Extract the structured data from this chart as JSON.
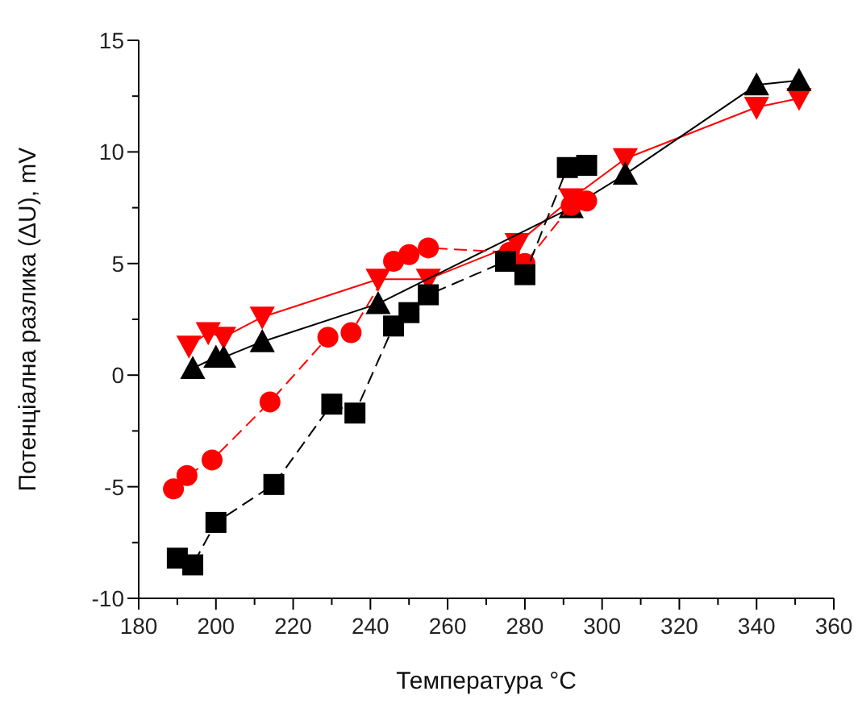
{
  "chart_data": {
    "type": "line",
    "xlabel": "Температура °C",
    "ylabel": "Потенціална разлика (ΔU), mV",
    "xlim": [
      180,
      360
    ],
    "ylim": [
      -10,
      15
    ],
    "xticks": [
      180,
      {
        "value": 190,
        "label": null
      },
      200,
      {
        "value": 210,
        "label": null
      },
      220,
      {
        "value": 230,
        "label": null
      },
      240,
      {
        "value": 250,
        "label": null
      },
      260,
      {
        "value": 270,
        "label": null
      },
      280,
      {
        "value": 290,
        "label": null
      },
      300,
      {
        "value": 310,
        "label": null
      },
      320,
      {
        "value": 330,
        "label": null
      },
      340,
      {
        "value": 350,
        "label": null
      },
      360
    ],
    "yticks": [
      -10,
      {
        "value": -7.5,
        "label": null
      },
      -5,
      {
        "value": -2.5,
        "label": null
      },
      0,
      {
        "value": 2.5,
        "label": null
      },
      5,
      {
        "value": 7.5,
        "label": null
      },
      10,
      {
        "value": 12.5,
        "label": null
      },
      15
    ],
    "series": [
      {
        "color": "#000000",
        "marker": "square",
        "line_style": "dashed",
        "x": [
          190,
          194,
          200,
          215,
          230,
          236,
          246,
          250,
          255,
          275,
          280,
          291,
          296
        ],
        "values": [
          -8.2,
          -8.5,
          -6.6,
          -4.9,
          -1.3,
          -1.7,
          2.2,
          2.8,
          3.6,
          5.1,
          4.5,
          9.3,
          9.4
        ]
      },
      {
        "color": "#ff0000",
        "marker": "circle",
        "line_style": "dashed",
        "x": [
          189,
          192.5,
          199,
          214,
          229,
          235,
          246,
          250,
          255,
          276,
          280,
          292,
          296
        ],
        "values": [
          -5.1,
          -4.5,
          -3.8,
          -1.2,
          1.7,
          1.9,
          5.1,
          5.4,
          5.7,
          5.5,
          5.0,
          7.6,
          7.8
        ]
      },
      {
        "color": "#000000",
        "marker": "triangle",
        "line_style": "solid",
        "x": [
          194,
          200,
          202,
          212,
          242,
          292,
          306,
          340,
          351
        ],
        "values": [
          0.3,
          0.8,
          0.8,
          1.5,
          3.2,
          7.5,
          9.0,
          13.0,
          13.2
        ]
      },
      {
        "color": "#ff0000",
        "marker": "triangle-down",
        "line_style": "solid",
        "x": [
          193,
          198,
          202,
          212,
          242,
          255,
          278,
          292,
          306,
          340,
          351
        ],
        "values": [
          1.3,
          1.9,
          1.7,
          2.6,
          4.3,
          4.3,
          5.9,
          7.9,
          9.7,
          12.0,
          12.4
        ]
      }
    ]
  }
}
